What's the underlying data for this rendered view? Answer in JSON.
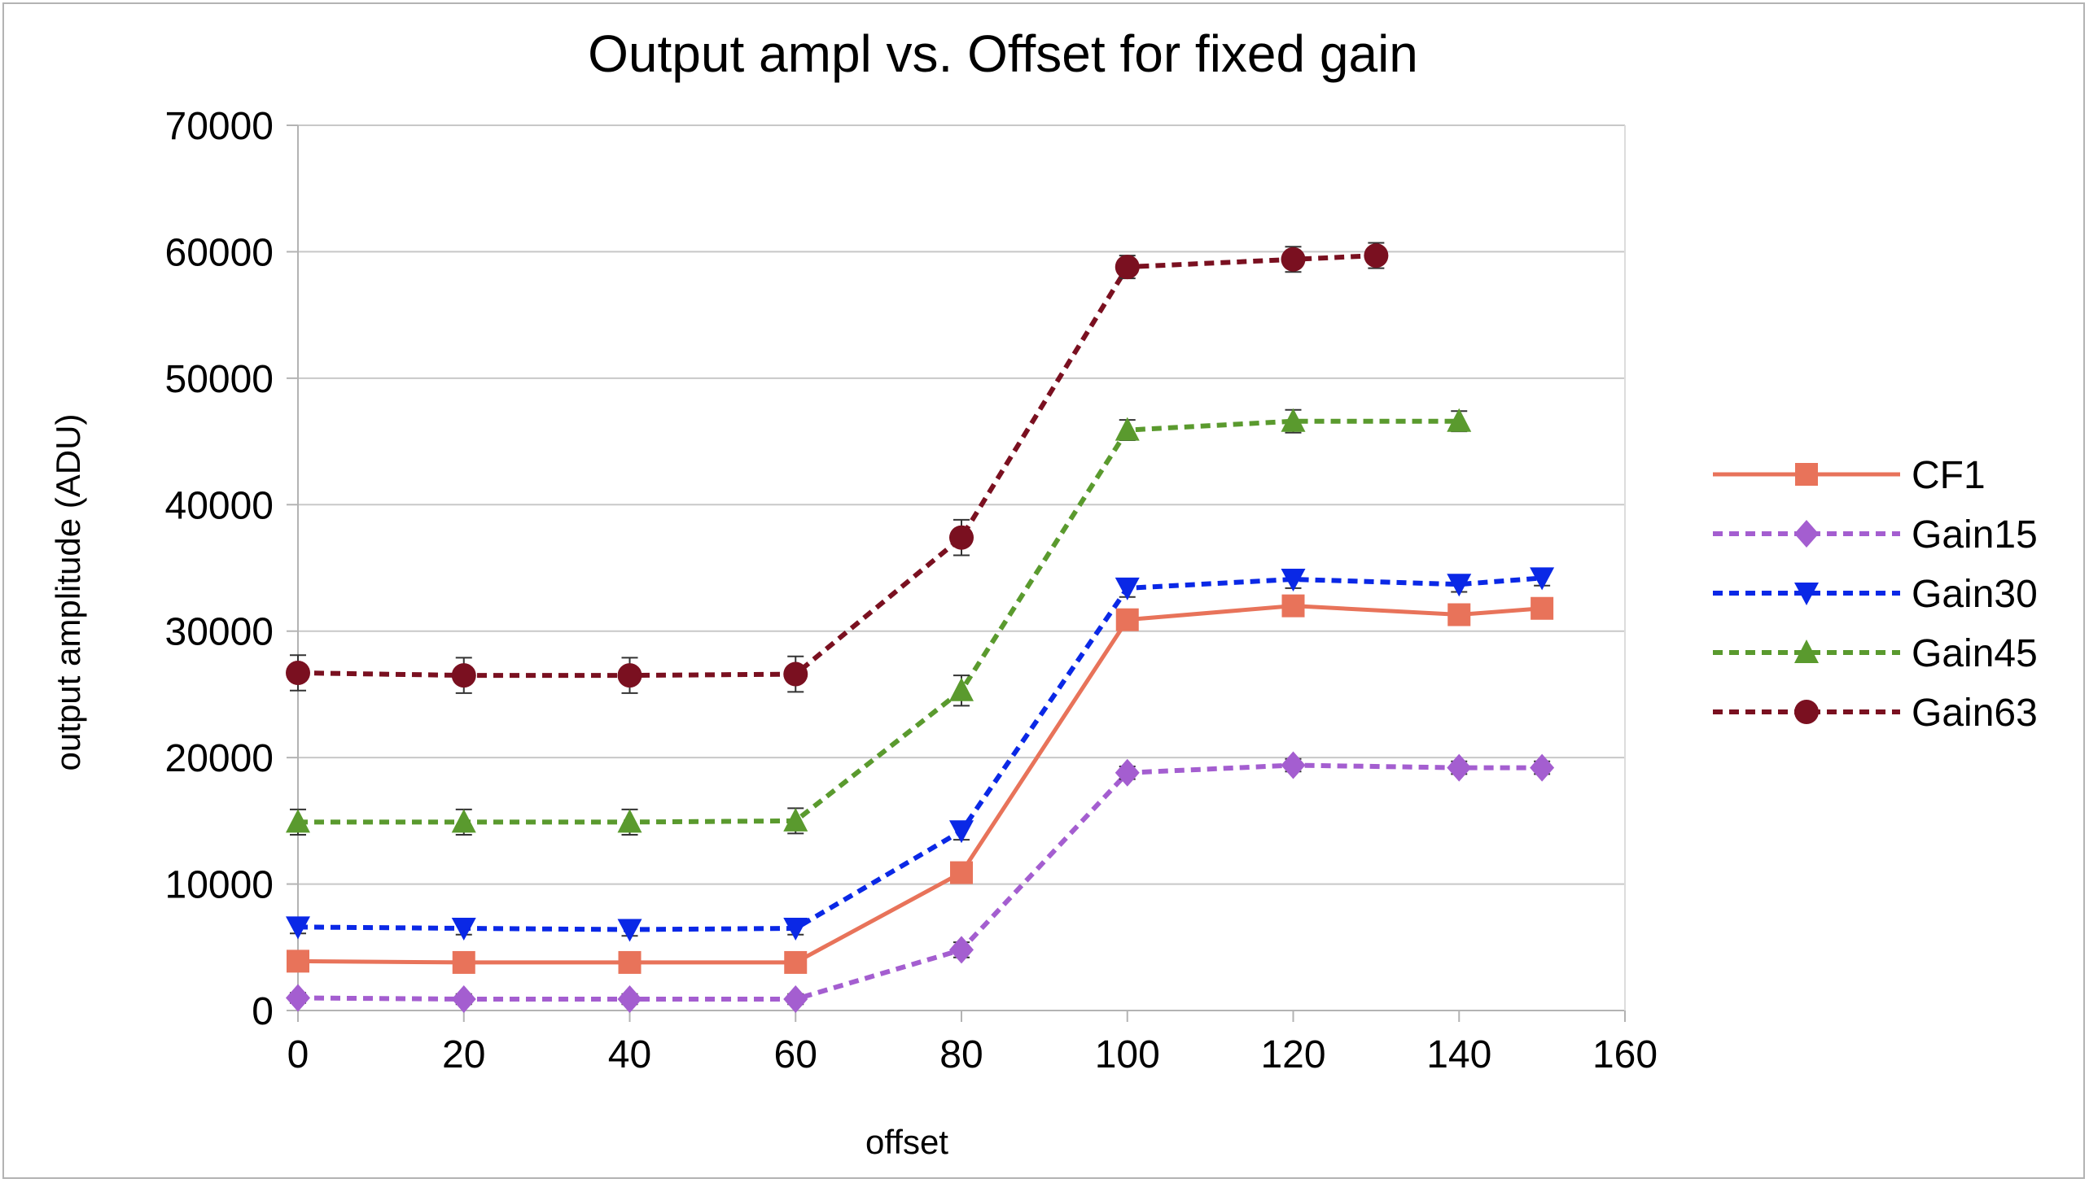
{
  "chart_data": {
    "type": "line",
    "title": "Output ampl vs. Offset for fixed gain",
    "xlabel": "offset",
    "ylabel": "output amplitude (ADU)",
    "xlim": [
      0,
      160
    ],
    "ylim": [
      0,
      70000
    ],
    "x_ticks": [
      "0",
      "20",
      "40",
      "60",
      "80",
      "100",
      "120",
      "140",
      "160"
    ],
    "y_ticks": [
      "0",
      "10000",
      "20000",
      "30000",
      "40000",
      "50000",
      "60000",
      "70000"
    ],
    "grid": "horizontal",
    "legend_position": "right",
    "error_bars": true,
    "series": [
      {
        "name": "CF1",
        "color": "#e8735a",
        "line_style": "solid",
        "marker": "square",
        "points": [
          [
            0,
            3900
          ],
          [
            20,
            3800
          ],
          [
            40,
            3800
          ],
          [
            60,
            3800
          ],
          [
            80,
            10900
          ],
          [
            100,
            30900
          ],
          [
            120,
            32000
          ],
          [
            140,
            31300
          ],
          [
            150,
            31800
          ]
        ],
        "errors": [
          500,
          500,
          500,
          500,
          600,
          600,
          600,
          600,
          600
        ]
      },
      {
        "name": "Gain15",
        "color": "#a45ed0",
        "line_style": "dashed",
        "marker": "diamond",
        "points": [
          [
            0,
            1000
          ],
          [
            20,
            900
          ],
          [
            40,
            900
          ],
          [
            60,
            900
          ],
          [
            80,
            4800
          ],
          [
            100,
            18800
          ],
          [
            120,
            19400
          ],
          [
            140,
            19200
          ],
          [
            150,
            19200
          ]
        ],
        "errors": [
          400,
          400,
          400,
          400,
          600,
          500,
          500,
          500,
          500
        ]
      },
      {
        "name": "Gain30",
        "color": "#0a28e6",
        "line_style": "dashed",
        "marker": "triangle-down",
        "points": [
          [
            0,
            6600
          ],
          [
            20,
            6500
          ],
          [
            40,
            6400
          ],
          [
            60,
            6500
          ],
          [
            80,
            14200
          ],
          [
            100,
            33400
          ],
          [
            120,
            34100
          ],
          [
            140,
            33700
          ],
          [
            150,
            34200
          ]
        ],
        "errors": [
          500,
          500,
          500,
          500,
          700,
          700,
          700,
          600,
          600
        ]
      },
      {
        "name": "Gain45",
        "color": "#5a9a2e",
        "line_style": "dashed",
        "marker": "triangle-up",
        "points": [
          [
            0,
            14900
          ],
          [
            20,
            14900
          ],
          [
            40,
            14900
          ],
          [
            60,
            15000
          ],
          [
            80,
            25300
          ],
          [
            100,
            45900
          ],
          [
            120,
            46600
          ],
          [
            140,
            46600
          ]
        ],
        "errors": [
          1000,
          1000,
          1000,
          1000,
          1200,
          800,
          900,
          800
        ]
      },
      {
        "name": "Gain63",
        "color": "#7a1020",
        "line_style": "dashed",
        "marker": "circle",
        "points": [
          [
            0,
            26700
          ],
          [
            20,
            26500
          ],
          [
            40,
            26500
          ],
          [
            60,
            26600
          ],
          [
            80,
            37400
          ],
          [
            100,
            58800
          ],
          [
            120,
            59400
          ],
          [
            130,
            59700
          ]
        ],
        "errors": [
          1400,
          1400,
          1400,
          1400,
          1400,
          900,
          1000,
          1000
        ]
      }
    ]
  }
}
